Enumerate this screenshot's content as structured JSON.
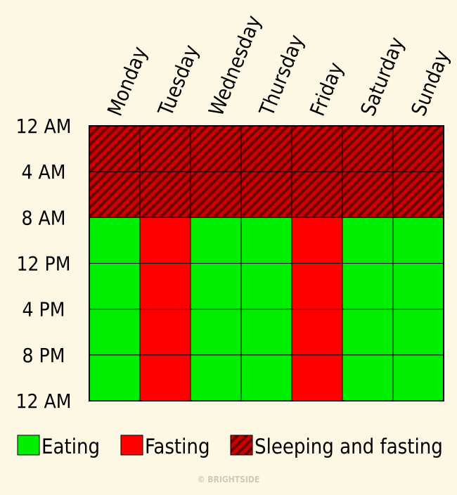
{
  "chart_data": {
    "type": "heatmap",
    "title": "",
    "days": [
      "Monday",
      "Tuesday",
      "Wednesday",
      "Thursday",
      "Friday",
      "Saturday",
      "Sunday"
    ],
    "time_labels": [
      "12 AM",
      "4 AM",
      "8 AM",
      "12 PM",
      "4 PM",
      "8 PM",
      "12 AM"
    ],
    "categories": [
      {
        "key": "eating",
        "label": "Eating",
        "color": "#00ee00"
      },
      {
        "key": "fasting",
        "label": "Fasting",
        "color": "#ff0000"
      },
      {
        "key": "sleeping",
        "label": "Sleeping and fasting",
        "color": "#cc0000",
        "stripe_color": "#6b0000"
      }
    ],
    "grid": [
      [
        "sleeping",
        "sleeping",
        "sleeping",
        "sleeping",
        "sleeping",
        "sleeping",
        "sleeping"
      ],
      [
        "sleeping",
        "sleeping",
        "sleeping",
        "sleeping",
        "sleeping",
        "sleeping",
        "sleeping"
      ],
      [
        "eating",
        "fasting",
        "eating",
        "eating",
        "fasting",
        "eating",
        "eating"
      ],
      [
        "eating",
        "fasting",
        "eating",
        "eating",
        "fasting",
        "eating",
        "eating"
      ],
      [
        "eating",
        "fasting",
        "eating",
        "eating",
        "fasting",
        "eating",
        "eating"
      ],
      [
        "eating",
        "fasting",
        "eating",
        "eating",
        "fasting",
        "eating",
        "eating"
      ]
    ],
    "legend_position": "bottom"
  },
  "credit": "© BRIGHTSIDE"
}
